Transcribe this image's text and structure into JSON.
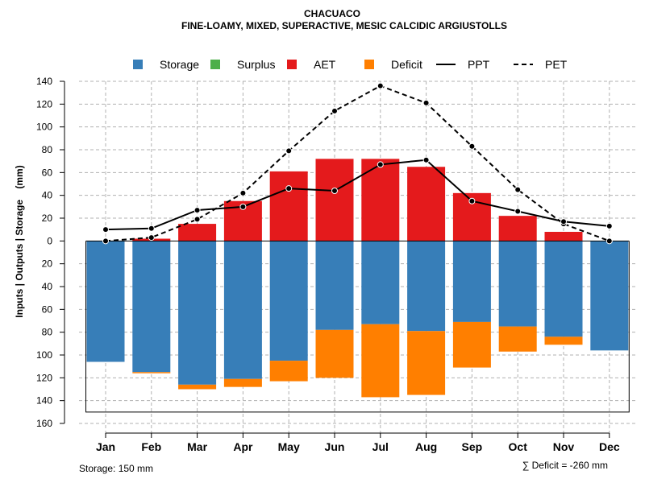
{
  "chart_data": {
    "type": "bar",
    "title": "CHACUACO",
    "subtitle": "FINE-LOAMY, MIXED, SUPERACTIVE, MESIC CALCIDIC ARGIUSTOLLS",
    "ylabel": "Inputs | Outputs | Storage    (mm)",
    "xlabel": "",
    "ylim": [
      -160,
      140
    ],
    "yticks": [
      140,
      120,
      100,
      80,
      60,
      40,
      20,
      0,
      -20,
      -40,
      -60,
      -80,
      -100,
      -120,
      -140,
      -160
    ],
    "ytick_labels": [
      "140",
      "120",
      "100",
      "80",
      "60",
      "40",
      "20",
      "0",
      "20",
      "40",
      "60",
      "80",
      "100",
      "120",
      "140",
      "160"
    ],
    "grid": true,
    "legend_position": "top",
    "categories": [
      "Jan",
      "Feb",
      "Mar",
      "Apr",
      "May",
      "Jun",
      "Jul",
      "Aug",
      "Sep",
      "Oct",
      "Nov",
      "Dec"
    ],
    "series": [
      {
        "name": "Storage",
        "kind": "bar-below",
        "color": "#377EB8",
        "values": [
          106,
          115,
          126,
          121,
          105,
          78,
          73,
          79,
          71,
          75,
          84,
          96
        ]
      },
      {
        "name": "Surplus",
        "kind": "bar-above",
        "color": "#4DAF4A",
        "values": [
          0,
          0,
          0,
          0,
          0,
          0,
          0,
          0,
          0,
          0,
          0,
          0
        ]
      },
      {
        "name": "AET",
        "kind": "bar-above",
        "color": "#E41A1C",
        "values": [
          0,
          2,
          15,
          35,
          61,
          72,
          72,
          65,
          42,
          22,
          8,
          0
        ]
      },
      {
        "name": "Deficit",
        "kind": "bar-below-stacked",
        "color": "#FF7F00",
        "values": [
          0,
          1,
          4,
          7,
          18,
          42,
          64,
          56,
          40,
          22,
          7,
          0
        ]
      },
      {
        "name": "PPT",
        "kind": "line-solid",
        "color": "#000000",
        "values": [
          10,
          11,
          27,
          30,
          46,
          44,
          67,
          71,
          35,
          26,
          17,
          13
        ]
      },
      {
        "name": "PET",
        "kind": "line-dashed",
        "color": "#000000",
        "values": [
          0,
          3,
          19,
          42,
          79,
          114,
          136,
          121,
          83,
          45,
          15,
          0
        ]
      }
    ],
    "storage_capacity": 150,
    "notes": {
      "storage": "Storage: 150 mm",
      "deficit": "∑ Deficit = -260 mm"
    }
  }
}
